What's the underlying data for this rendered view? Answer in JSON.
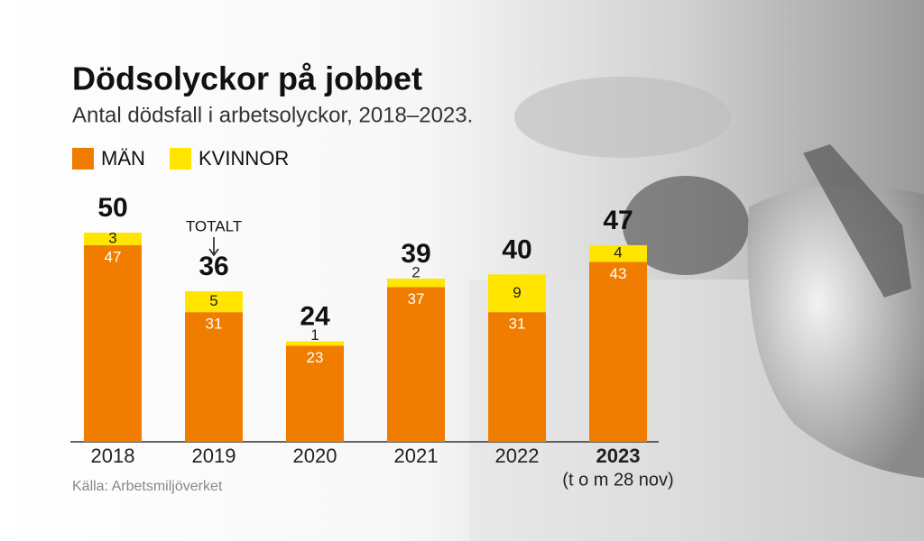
{
  "chart_data": {
    "type": "stacked_bar",
    "title": "Dödsolyckor på jobbet",
    "subtitle": "Antal dödsfall i arbetsolyckor, 2018–2023.",
    "categories": [
      "2018",
      "2019",
      "2020",
      "2021",
      "2022",
      "2023"
    ],
    "series": [
      {
        "name": "MÄN",
        "color": "#f07d00",
        "values": [
          47,
          31,
          23,
          37,
          31,
          43
        ]
      },
      {
        "name": "KVINNOR",
        "color": "#ffe500",
        "values": [
          3,
          5,
          1,
          2,
          9,
          4
        ]
      }
    ],
    "totals": [
      50,
      36,
      24,
      39,
      40,
      47
    ],
    "annotation": "TOTALT",
    "note": "(t o m 28 nov)",
    "source": "Källa: Arbetsmiljöverket"
  }
}
